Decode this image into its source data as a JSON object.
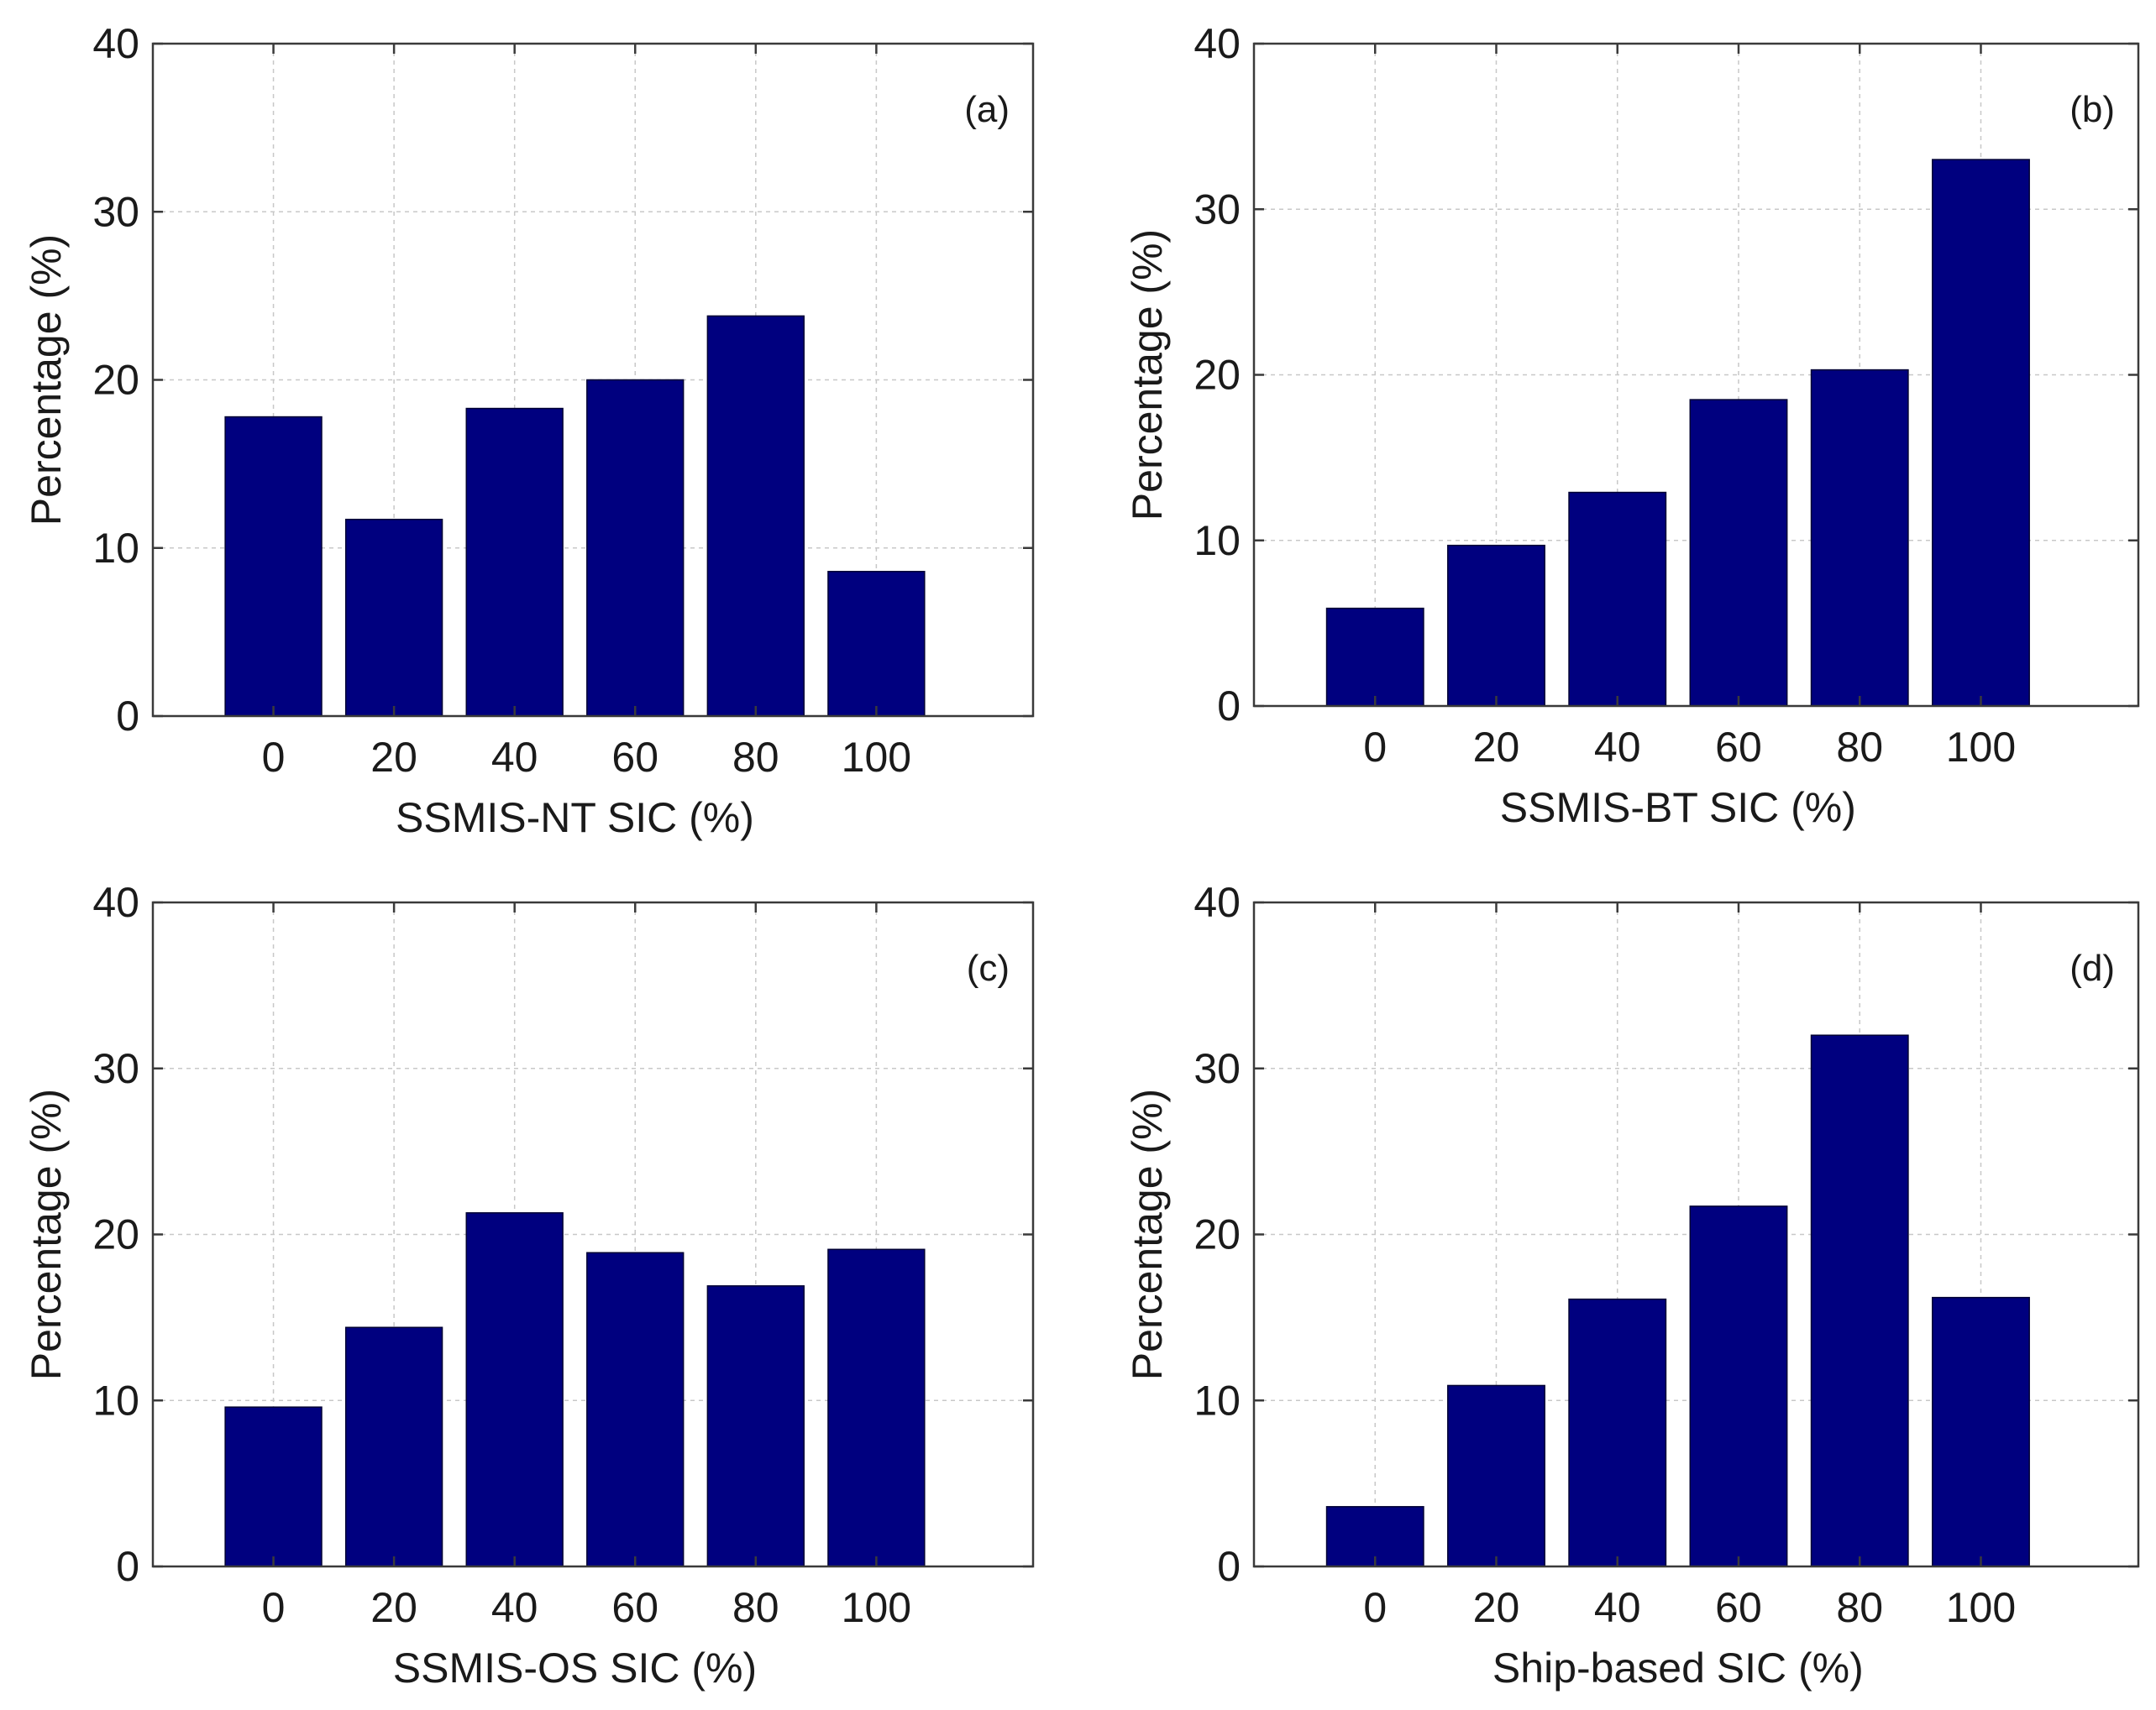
{
  "chart_data": [
    {
      "type": "bar",
      "panel_label": "(a)",
      "categories": [
        "0",
        "20",
        "40",
        "60",
        "80",
        "100"
      ],
      "values": [
        17.8,
        11.7,
        18.3,
        20.0,
        23.8,
        8.6
      ],
      "xlabel": "SSMIS-NT SIC (%)",
      "ylabel": "Percentage (%)",
      "ylim": [
        0,
        40
      ],
      "yticks": [
        "0",
        "10",
        "20",
        "30",
        "40"
      ],
      "grid": true,
      "bar_color": "#00007f"
    },
    {
      "type": "bar",
      "panel_label": "(b)",
      "categories": [
        "0",
        "20",
        "40",
        "60",
        "80",
        "100"
      ],
      "values": [
        5.9,
        9.7,
        12.9,
        18.5,
        20.3,
        33.0
      ],
      "xlabel": "SSMIS-BT SIC (%)",
      "ylabel": "Percentage (%)",
      "ylim": [
        0,
        40
      ],
      "yticks": [
        "0",
        "10",
        "20",
        "30",
        "40"
      ],
      "grid": true,
      "bar_color": "#00007f"
    },
    {
      "type": "bar",
      "panel_label": "(c)",
      "categories": [
        "0",
        "20",
        "40",
        "60",
        "80",
        "100"
      ],
      "values": [
        9.6,
        14.4,
        21.3,
        18.9,
        16.9,
        19.1
      ],
      "xlabel": "SSMIS-OS SIC (%)",
      "ylabel": "Percentage (%)",
      "ylim": [
        0,
        40
      ],
      "yticks": [
        "0",
        "10",
        "20",
        "30",
        "40"
      ],
      "grid": true,
      "bar_color": "#00007f"
    },
    {
      "type": "bar",
      "panel_label": "(d)",
      "categories": [
        "0",
        "20",
        "40",
        "60",
        "80",
        "100"
      ],
      "values": [
        3.6,
        10.9,
        16.1,
        21.7,
        32.0,
        16.2
      ],
      "xlabel": "Ship-based SIC (%)",
      "ylabel": "Percentage (%)",
      "ylim": [
        0,
        40
      ],
      "yticks": [
        "0",
        "10",
        "20",
        "30",
        "40"
      ],
      "grid": true,
      "bar_color": "#00007f"
    }
  ]
}
